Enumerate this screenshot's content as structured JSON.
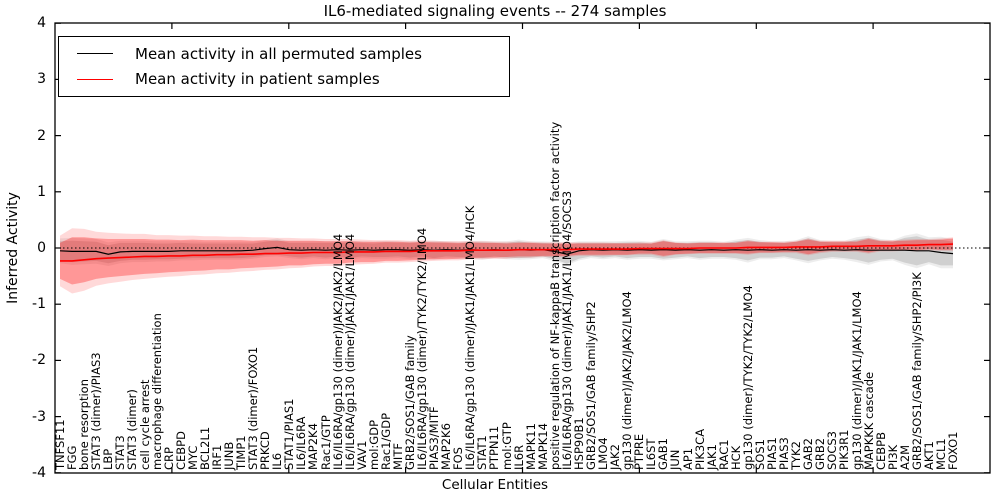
{
  "chart_data": {
    "type": "line",
    "title": "IL6-mediated signaling events -- 274 samples",
    "xlabel": "Cellular Entities",
    "ylabel": "Inferred Activity",
    "ylim": [
      -4,
      4
    ],
    "yticks": [
      -4,
      -3,
      -2,
      -1,
      0,
      1,
      2,
      3,
      4
    ],
    "grid": false,
    "zero_line": "dotted",
    "legend_position": "upper left",
    "categories": [
      "TNFSF11",
      "FGG",
      "bone resorption",
      "STAT3 (dimer)/PIAS3",
      "LBP",
      "STAT3",
      "STAT3 (dimer)",
      "cell cycle arrest",
      "macrophage differentiation",
      "CRP",
      "CEBPD",
      "MYC",
      "BCL2L1",
      "IRF1",
      "JUNB",
      "TIMP1",
      "STAT3 (dimer)/FOXO1",
      "PRKCD",
      "IL6",
      "STAT1/PIAS1",
      "IL6/IL6RA",
      "MAP2K4",
      "Rac1/GTP",
      "IL6/IL6RA/gp130 (dimer)/JAK2/JAK2/LMO4",
      "IL6/IL6RA/gp130 (dimer)/JAK1/JAK1/LMO4",
      "VAV1",
      "mol:GDP",
      "Rac1/GDP",
      "MITF",
      "GRB2/SOS1/GAB family",
      "IL6/IL6RA/gp130 (dimer)/TYK2/TYK2/LMO4",
      "PIAS3/MITF",
      "MAP2K6",
      "FOS",
      "IL6/IL6RA/gp130 (dimer)/JAK1/JAK1/LMO4/HCK",
      "STAT1",
      "PTPN11",
      "mol:GTP",
      "IL6R",
      "MAPK11",
      "MAPK14",
      "positive regulation of NF-kappaB transcription factor activity",
      "IL6/IL6RA/gp130 (dimer)/JAK1/JAK1/LMO4/SOCS3",
      "HSP90B1",
      "GRB2/SOS1/GAB family/SHP2",
      "LMO4",
      "JAK2",
      "gp130 (dimer)/JAK2/JAK2/LMO4",
      "PTPRE",
      "IL6ST",
      "GAB1",
      "JUN",
      "AP1",
      "PIK3CA",
      "JAK1",
      "RAC1",
      "HCK",
      "gp130 (dimer)/TYK2/TYK2/LMO4",
      "SOS1",
      "PIAS1",
      "PIAS3",
      "TYK2",
      "GAB2",
      "GRB2",
      "SOCS3",
      "PIK3R1",
      "gp130 (dimer)/JAK1/JAK1/LMO4",
      "MAPKKK cascade",
      "CEBPB",
      "PI3K",
      "A2M",
      "GRB2/SOS1/GAB family/SHP2/PI3K",
      "AKT1",
      "MCL1",
      "FOXO1"
    ],
    "series": [
      {
        "name": "Mean activity in all permuted samples",
        "color": "#000000",
        "values": [
          -0.05,
          -0.06,
          -0.06,
          -0.06,
          -0.11,
          -0.07,
          -0.06,
          -0.06,
          -0.06,
          -0.06,
          -0.05,
          -0.05,
          -0.05,
          -0.05,
          -0.05,
          -0.05,
          -0.04,
          -0.01,
          0.01,
          -0.03,
          -0.04,
          -0.03,
          -0.04,
          -0.03,
          -0.04,
          -0.03,
          -0.04,
          -0.03,
          -0.03,
          -0.04,
          -0.03,
          -0.04,
          -0.03,
          -0.04,
          -0.03,
          -0.04,
          -0.03,
          -0.04,
          -0.03,
          -0.04,
          -0.03,
          -0.06,
          -0.11,
          -0.05,
          -0.03,
          -0.04,
          -0.03,
          -0.04,
          -0.03,
          -0.04,
          -0.03,
          -0.04,
          -0.03,
          -0.04,
          -0.03,
          -0.04,
          -0.03,
          -0.04,
          -0.03,
          -0.04,
          -0.03,
          -0.04,
          -0.03,
          -0.04,
          -0.03,
          -0.04,
          -0.03,
          -0.04,
          -0.04,
          -0.04,
          -0.04,
          -0.05,
          -0.05,
          -0.08,
          -0.1
        ],
        "band_inner": [
          0.17,
          0.19,
          0.18,
          0.17,
          0.16,
          0.16,
          0.15,
          0.15,
          0.14,
          0.14,
          0.14,
          0.13,
          0.13,
          0.13,
          0.13,
          0.13,
          0.12,
          0.12,
          0.13,
          0.12,
          0.13,
          0.12,
          0.13,
          0.12,
          0.14,
          0.12,
          0.12,
          0.13,
          0.12,
          0.13,
          0.12,
          0.14,
          0.12,
          0.12,
          0.13,
          0.14,
          0.12,
          0.13,
          0.15,
          0.13,
          0.12,
          0.14,
          0.17,
          0.14,
          0.12,
          0.13,
          0.12,
          0.14,
          0.13,
          0.12,
          0.16,
          0.13,
          0.12,
          0.14,
          0.13,
          0.12,
          0.15,
          0.18,
          0.14,
          0.13,
          0.12,
          0.15,
          0.2,
          0.15,
          0.13,
          0.14,
          0.18,
          0.22,
          0.17,
          0.15,
          0.22,
          0.26,
          0.2,
          0.23,
          0.21
        ],
        "band_outer": [
          0.22,
          0.24,
          0.23,
          0.22,
          0.21,
          0.2,
          0.19,
          0.19,
          0.18,
          0.18,
          0.17,
          0.17,
          0.16,
          0.16,
          0.16,
          0.16,
          0.15,
          0.15,
          0.16,
          0.15,
          0.16,
          0.15,
          0.16,
          0.15,
          0.17,
          0.15,
          0.15,
          0.16,
          0.15,
          0.16,
          0.15,
          0.17,
          0.15,
          0.15,
          0.16,
          0.17,
          0.15,
          0.16,
          0.18,
          0.16,
          0.15,
          0.17,
          0.2,
          0.17,
          0.15,
          0.16,
          0.15,
          0.17,
          0.16,
          0.15,
          0.19,
          0.16,
          0.15,
          0.17,
          0.16,
          0.15,
          0.18,
          0.22,
          0.17,
          0.16,
          0.15,
          0.18,
          0.24,
          0.18,
          0.16,
          0.17,
          0.22,
          0.26,
          0.2,
          0.18,
          0.26,
          0.31,
          0.24,
          0.28,
          0.26
        ]
      },
      {
        "name": "Mean activity in patient samples",
        "color": "#ff0000",
        "values": [
          -0.23,
          -0.23,
          -0.21,
          -0.19,
          -0.18,
          -0.17,
          -0.16,
          -0.15,
          -0.15,
          -0.14,
          -0.14,
          -0.13,
          -0.13,
          -0.12,
          -0.12,
          -0.11,
          -0.11,
          -0.1,
          -0.1,
          -0.09,
          -0.09,
          -0.08,
          -0.08,
          -0.08,
          -0.07,
          -0.07,
          -0.07,
          -0.06,
          -0.06,
          -0.06,
          -0.05,
          -0.05,
          -0.05,
          -0.05,
          -0.04,
          -0.04,
          -0.04,
          -0.04,
          -0.03,
          -0.03,
          -0.03,
          -0.03,
          -0.03,
          -0.02,
          -0.02,
          -0.02,
          -0.02,
          -0.02,
          -0.01,
          -0.01,
          -0.01,
          -0.01,
          -0.01,
          0.0,
          0.0,
          0.0,
          0.0,
          0.01,
          0.01,
          0.01,
          0.01,
          0.02,
          0.02,
          0.02,
          0.03,
          0.03,
          0.03,
          0.04,
          0.04,
          0.04,
          0.05,
          0.05,
          0.06,
          0.06,
          0.07
        ],
        "band_inner": [
          0.32,
          0.42,
          0.4,
          0.36,
          0.34,
          0.33,
          0.32,
          0.31,
          0.3,
          0.29,
          0.28,
          0.28,
          0.27,
          0.26,
          0.26,
          0.25,
          0.24,
          0.24,
          0.23,
          0.22,
          0.22,
          0.21,
          0.2,
          0.2,
          0.19,
          0.18,
          0.18,
          0.17,
          0.17,
          0.16,
          0.16,
          0.15,
          0.15,
          0.14,
          0.14,
          0.13,
          0.13,
          0.12,
          0.12,
          0.12,
          0.11,
          0.11,
          0.11,
          0.1,
          0.1,
          0.1,
          0.1,
          0.1,
          0.09,
          0.09,
          0.13,
          0.1,
          0.09,
          0.09,
          0.09,
          0.09,
          0.09,
          0.11,
          0.09,
          0.09,
          0.08,
          0.09,
          0.13,
          0.09,
          0.08,
          0.08,
          0.08,
          0.12,
          0.08,
          0.08,
          0.08,
          0.09,
          0.08,
          0.09,
          0.1
        ],
        "band_outer": [
          0.45,
          0.58,
          0.55,
          0.48,
          0.45,
          0.43,
          0.41,
          0.4,
          0.38,
          0.37,
          0.36,
          0.35,
          0.34,
          0.33,
          0.32,
          0.31,
          0.3,
          0.29,
          0.28,
          0.27,
          0.26,
          0.25,
          0.24,
          0.24,
          0.23,
          0.22,
          0.21,
          0.2,
          0.2,
          0.19,
          0.19,
          0.18,
          0.17,
          0.17,
          0.16,
          0.16,
          0.15,
          0.15,
          0.14,
          0.14,
          0.13,
          0.13,
          0.13,
          0.12,
          0.12,
          0.12,
          0.11,
          0.11,
          0.11,
          0.11,
          0.15,
          0.11,
          0.1,
          0.1,
          0.1,
          0.1,
          0.1,
          0.13,
          0.1,
          0.1,
          0.1,
          0.11,
          0.15,
          0.11,
          0.1,
          0.1,
          0.1,
          0.14,
          0.1,
          0.1,
          0.1,
          0.11,
          0.1,
          0.11,
          0.12
        ]
      }
    ]
  }
}
